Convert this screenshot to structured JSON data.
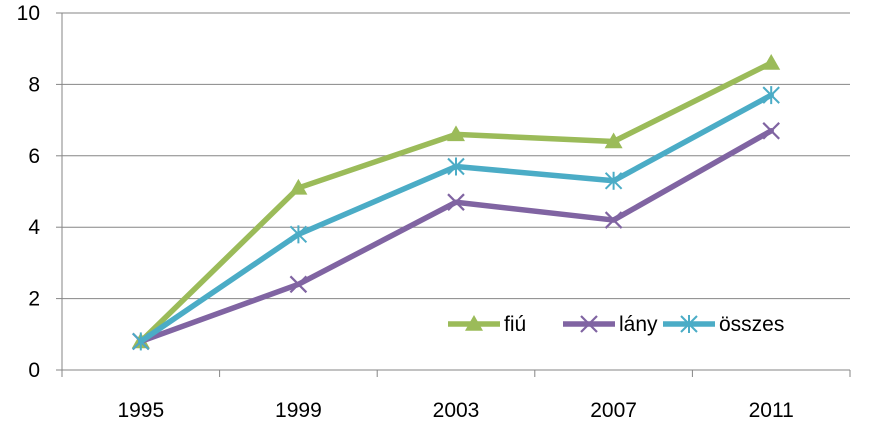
{
  "chart_data": {
    "type": "line",
    "categories": [
      "1995",
      "1999",
      "2003",
      "2007",
      "2011"
    ],
    "ylim": [
      0,
      10
    ],
    "yticks": [
      "0",
      "2",
      "4",
      "6",
      "8",
      "10"
    ],
    "grid": true,
    "legend_position": "bottom-right",
    "series": [
      {
        "name": "fiú",
        "color": "#9BBB59",
        "marker": "triangle",
        "values": [
          0.8,
          5.1,
          6.6,
          6.4,
          8.6
        ]
      },
      {
        "name": "lány",
        "color": "#8064A2",
        "marker": "x",
        "values": [
          0.8,
          2.4,
          4.7,
          4.2,
          6.7
        ]
      },
      {
        "name": "összes",
        "color": "#4BACC6",
        "marker": "star",
        "values": [
          0.8,
          3.8,
          5.7,
          5.3,
          7.7
        ]
      }
    ]
  }
}
